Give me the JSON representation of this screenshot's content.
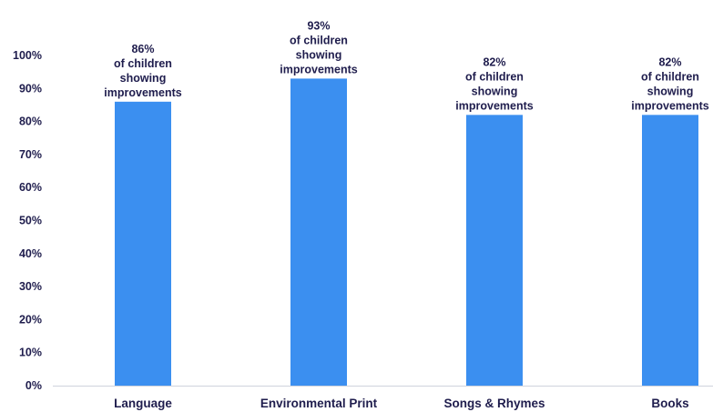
{
  "chart_data": {
    "type": "bar",
    "categories": [
      "Language",
      "Environmental Print",
      "Songs & Rhymes",
      "Books"
    ],
    "values": [
      86,
      93,
      82,
      82
    ],
    "data_labels": [
      [
        "86%",
        "of children",
        "showing",
        "improvements"
      ],
      [
        "93%",
        "of children",
        "showing",
        "improvements"
      ],
      [
        "82%",
        "of children",
        "showing",
        "improvements"
      ],
      [
        "82%",
        "of children",
        "showing",
        "improvements"
      ]
    ],
    "y_ticks": [
      "0%",
      "10%",
      "20%",
      "30%",
      "40%",
      "50%",
      "60%",
      "70%",
      "80%",
      "90%",
      "100%"
    ],
    "ylim": [
      0,
      100
    ],
    "title": "",
    "xlabel": "",
    "ylabel": "",
    "grid": false,
    "legend": "none",
    "bar_color": "#3b8ff0",
    "text_color": "#1f1d4d"
  }
}
